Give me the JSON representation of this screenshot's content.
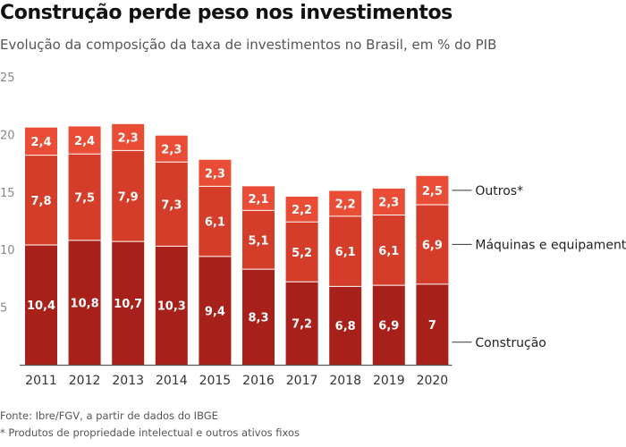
{
  "title": "Construção perde peso nos investimentos",
  "subtitle": "Evolução da composição da taxa de investimentos no Brasil, em % do PIB",
  "footer": {
    "source": "Fonte: Ibre/FGV, a partir de dados do IBGE",
    "note": "* Produtos de propriedade intelectual e outros ativos fixos"
  },
  "colors": {
    "construcao": "#a8201a",
    "maquinas": "#d43d2a",
    "outros": "#ea4d35"
  },
  "chart_data": {
    "type": "bar",
    "stacked": true,
    "categories": [
      "2011",
      "2012",
      "2013",
      "2014",
      "2015",
      "2016",
      "2017",
      "2018",
      "2019",
      "2020"
    ],
    "series": [
      {
        "name": "Construção",
        "key": "construcao",
        "values": [
          10.4,
          10.8,
          10.7,
          10.3,
          9.4,
          8.3,
          7.2,
          6.8,
          6.9,
          7
        ],
        "labels": [
          "10,4",
          "10,8",
          "10,7",
          "10,3",
          "9,4",
          "8,3",
          "7,2",
          "6,8",
          "6,9",
          "7"
        ]
      },
      {
        "name": "Máquinas e equipamentos",
        "key": "maquinas",
        "values": [
          7.8,
          7.5,
          7.9,
          7.3,
          6.1,
          5.1,
          5.2,
          6.1,
          6.1,
          6.9
        ],
        "labels": [
          "7,8",
          "7,5",
          "7,9",
          "7,3",
          "6,1",
          "5,1",
          "5,2",
          "6,1",
          "6,1",
          "6,9"
        ]
      },
      {
        "name": "Outros*",
        "key": "outros",
        "values": [
          2.4,
          2.4,
          2.3,
          2.3,
          2.3,
          2.1,
          2.2,
          2.2,
          2.3,
          2.5
        ],
        "labels": [
          "2,4",
          "2,4",
          "2,3",
          "2,3",
          "2,3",
          "2,1",
          "2,2",
          "2,2",
          "2,3",
          "2,5"
        ]
      }
    ],
    "yticks": [
      "25",
      "20",
      "15",
      "10",
      "5"
    ],
    "ytick_values": [
      25,
      20,
      15,
      10,
      5
    ],
    "ylim": [
      0,
      25
    ],
    "xlabel": "",
    "ylabel": "",
    "grid": false,
    "legend_position": "right"
  }
}
